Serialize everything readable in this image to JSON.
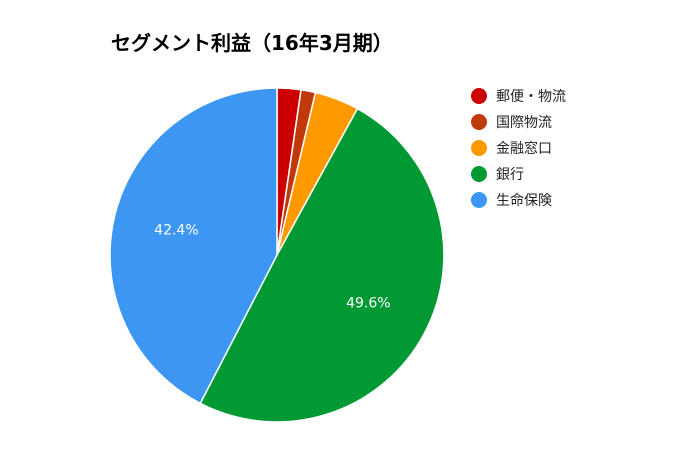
{
  "chart_data": {
    "type": "pie",
    "title": "セグメント利益（16年3月期）",
    "categories": [
      "郵便・物流",
      "国際物流",
      "金融窓口",
      "銀行",
      "生命保険"
    ],
    "values": [
      2.3,
      1.4,
      4.3,
      49.6,
      42.4
    ],
    "colors": [
      "#cc0000",
      "#c0390b",
      "#ff9900",
      "#009933",
      "#3c96f2"
    ],
    "data_labels": [
      "",
      "",
      "",
      "49.6%",
      "42.4%"
    ],
    "start_angle_deg": 0,
    "direction": "clockwise",
    "legend_position": "right"
  }
}
